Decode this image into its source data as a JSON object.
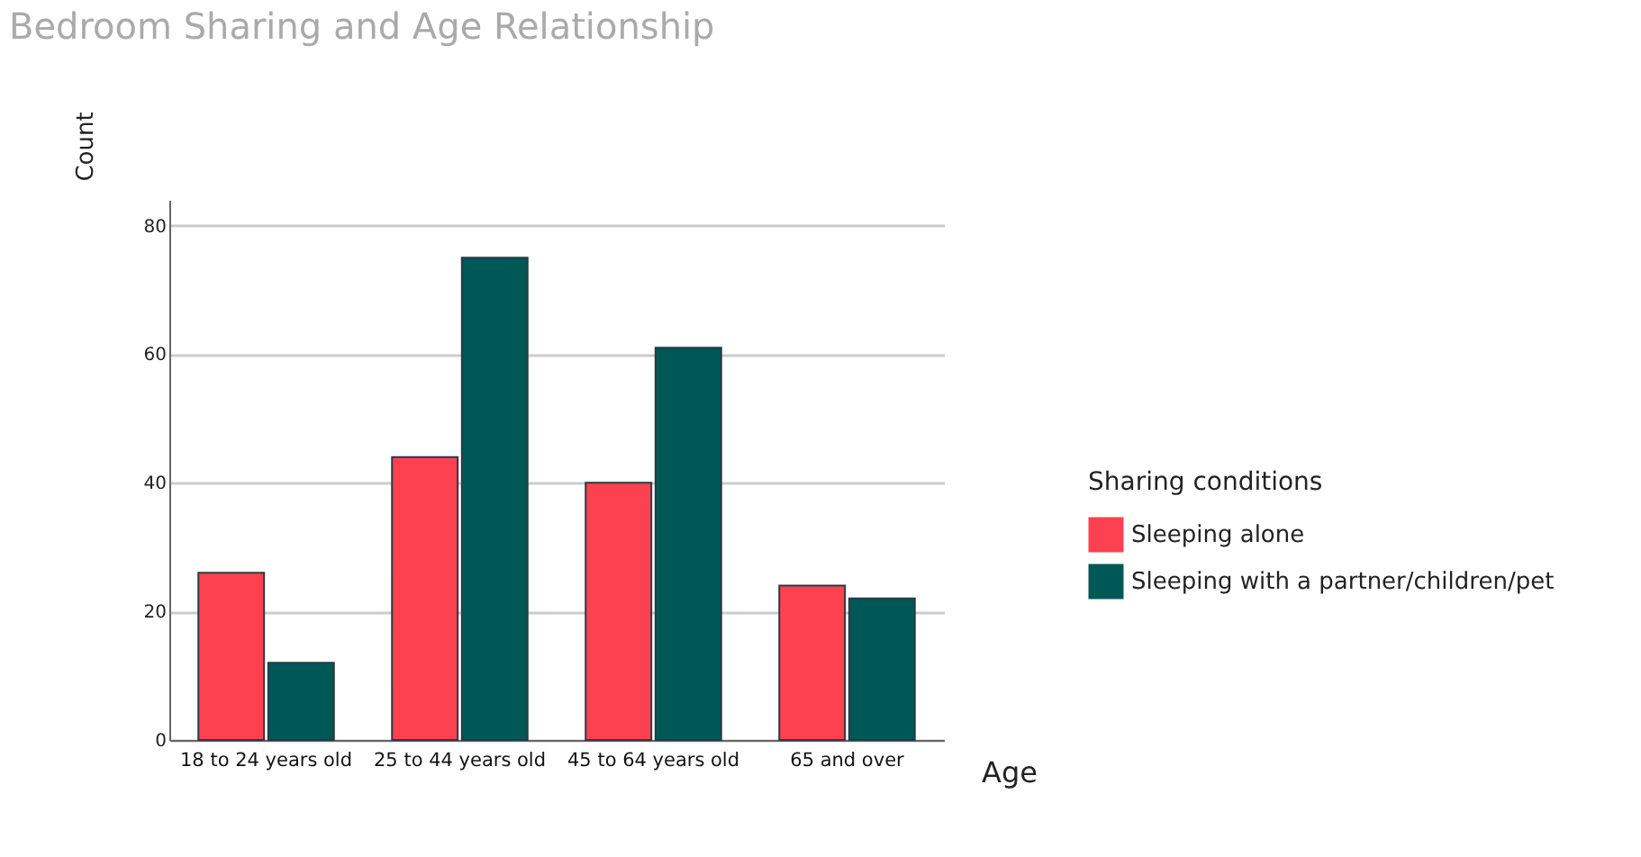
{
  "chart_data": {
    "type": "bar",
    "title": "Bedroom Sharing and Age Relationship",
    "xlabel": "Age",
    "ylabel": "Count",
    "legend_title": "Sharing conditions",
    "categories": [
      "18 to 24 years old",
      "25 to 44 years old",
      "45 to 64 years old",
      "65 and over"
    ],
    "series": [
      {
        "name": "Sleeping alone",
        "color": "#fc4250",
        "values": [
          26,
          44,
          40,
          24
        ]
      },
      {
        "name": "Sleeping with a partner/children/pet",
        "color": "#005856",
        "values": [
          12,
          75,
          61,
          22
        ]
      }
    ],
    "ylim": [
      0,
      84
    ],
    "yticks": [
      0,
      20,
      40,
      60,
      80
    ],
    "grid": "y",
    "legend": "right"
  }
}
